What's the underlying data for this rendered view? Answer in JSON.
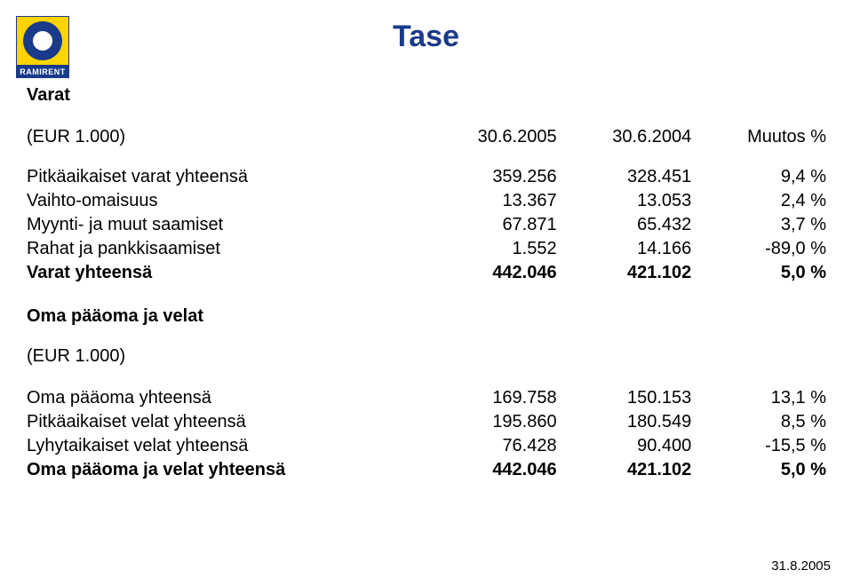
{
  "logo": {
    "brand": "RAMIRENT"
  },
  "title": "Tase",
  "section1": {
    "heading": "Varat",
    "header": {
      "label": "(EUR 1.000)",
      "colA": "30.6.2005",
      "colB": "30.6.2004",
      "colC": "Muutos %"
    },
    "rows": [
      {
        "label": "Pitkäaikaiset varat yhteensä",
        "a": "359.256",
        "b": "328.451",
        "c": "9,4 %",
        "bold": false
      },
      {
        "label": "Vaihto-omaisuus",
        "a": "13.367",
        "b": "13.053",
        "c": "2,4 %",
        "bold": false
      },
      {
        "label": "Myynti- ja muut saamiset",
        "a": "67.871",
        "b": "65.432",
        "c": "3,7 %",
        "bold": false
      },
      {
        "label": "Rahat ja pankkisaamiset",
        "a": "1.552",
        "b": "14.166",
        "c": "-89,0 %",
        "bold": false
      },
      {
        "label": "Varat yhteensä",
        "a": "442.046",
        "b": "421.102",
        "c": "5,0 %",
        "bold": true
      }
    ]
  },
  "section2": {
    "heading": "Oma pääoma ja velat",
    "subheader": "(EUR 1.000)",
    "rows": [
      {
        "label": "Oma pääoma yhteensä",
        "a": "169.758",
        "b": "150.153",
        "c": "13,1 %",
        "bold": false
      },
      {
        "label": "Pitkäaikaiset velat yhteensä",
        "a": "195.860",
        "b": "180.549",
        "c": "8,5 %",
        "bold": false
      },
      {
        "label": "Lyhytaikaiset velat yhteensä",
        "a": "76.428",
        "b": "90.400",
        "c": "-15,5 %",
        "bold": false
      },
      {
        "label": "Oma pääoma ja velat yhteensä",
        "a": "442.046",
        "b": "421.102",
        "c": "5,0 %",
        "bold": true
      }
    ]
  },
  "footer": {
    "date": "31.8.2005"
  },
  "style": {
    "title_color": "#1a3a8a",
    "title_fontsize": 34,
    "body_fontsize": 20,
    "background": "#ffffff",
    "logo_bg": "#ffd400",
    "logo_fg": "#1a3a8a"
  }
}
